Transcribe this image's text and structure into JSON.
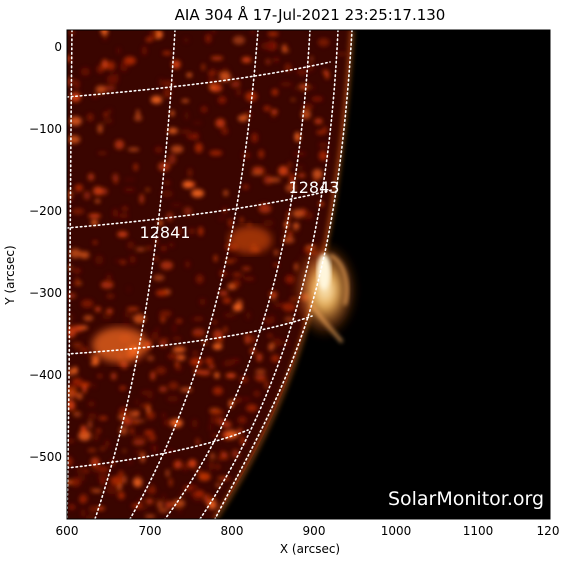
{
  "title": "AIA 304 Å 17-Jul-2021 23:25:17.130",
  "watermark": "SolarMonitor.org",
  "x_axis": {
    "label": "X (arcsec)",
    "ticks": [
      "600",
      "700",
      "800",
      "900",
      "1000",
      "1100",
      "120"
    ]
  },
  "y_axis": {
    "label": "Y (arcsec)",
    "ticks": [
      "0",
      "−100",
      "−200",
      "−300",
      "−400",
      "−500"
    ]
  },
  "active_regions": [
    {
      "id": "12843"
    },
    {
      "id": "12841"
    }
  ],
  "colors": {
    "disk": "#3a0500",
    "space": "#000000",
    "flare": "#ffd090",
    "grid": "#ffffff",
    "text": "#ffffff"
  }
}
